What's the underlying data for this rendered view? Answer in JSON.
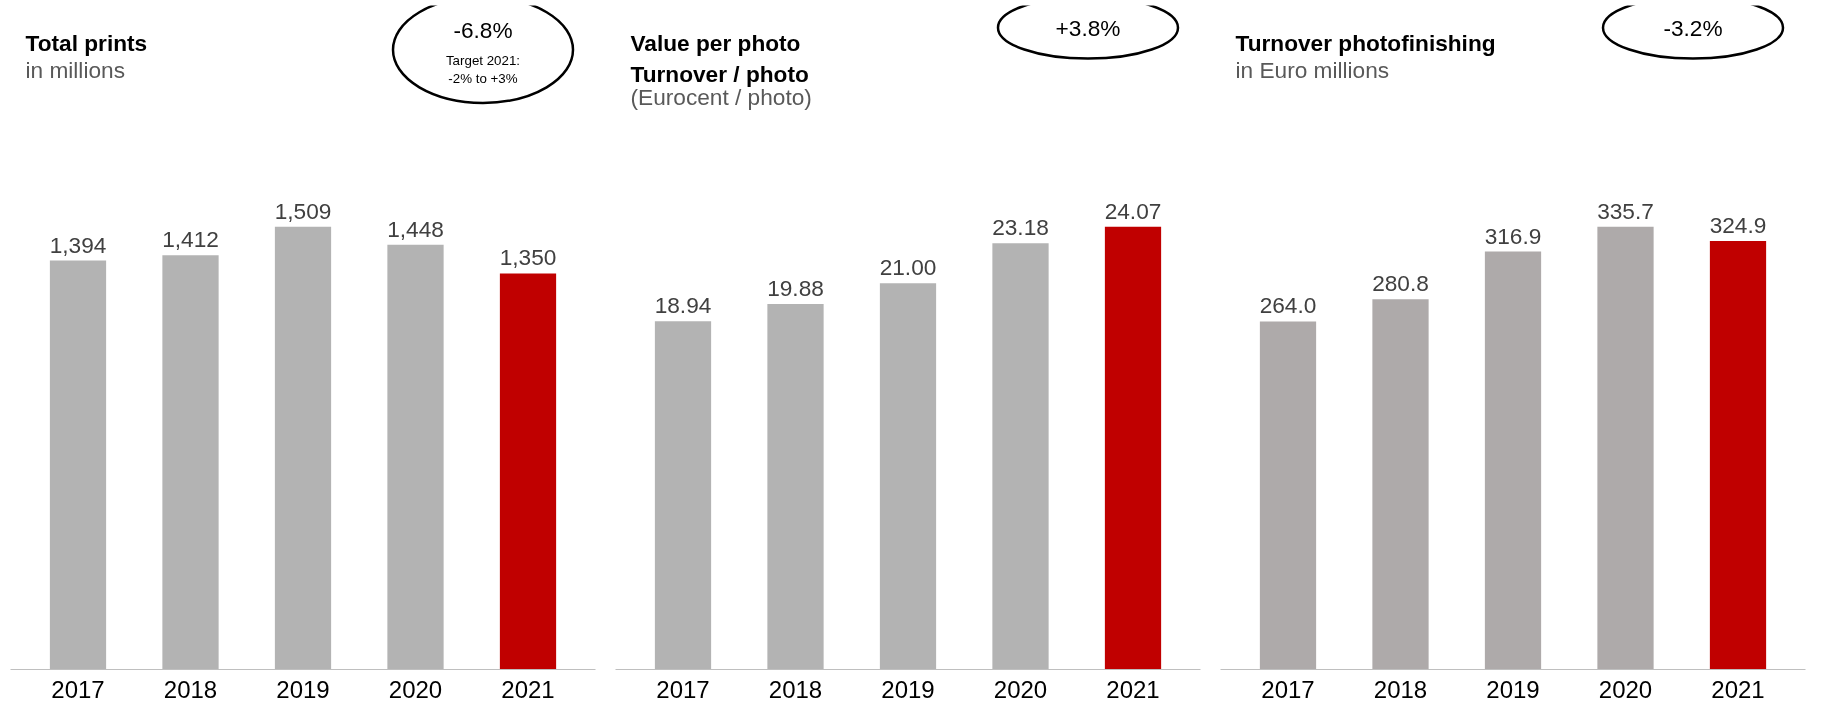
{
  "chart_data": [
    {
      "type": "bar",
      "title": "Total prints",
      "subtitle": "in millions",
      "categories": [
        "2017",
        "2018",
        "2019",
        "2020",
        "2021"
      ],
      "values": [
        1394,
        1412,
        1509,
        1448,
        1350
      ],
      "colors": [
        "#b3b3b3",
        "#b3b3b3",
        "#b3b3b3",
        "#b3b3b3",
        "#c00000"
      ],
      "value_labels": [
        "1,394",
        "1,412",
        "1,509",
        "1,448",
        "1,350"
      ],
      "annotations": [
        "-6.8%",
        "Target 2021:\n-2% to +3%"
      ],
      "grid": false
    },
    {
      "type": "bar",
      "title": "Value per photo\nTurnover / photo",
      "subtitle": "(Eurocent / photo)",
      "categories": [
        "2017",
        "2018",
        "2019",
        "2020",
        "2021"
      ],
      "values": [
        18.94,
        19.88,
        21.0,
        23.18,
        24.07
      ],
      "colors": [
        "#b3b3b3",
        "#b3b3b3",
        "#b3b3b3",
        "#b3b3b3",
        "#c00000"
      ],
      "value_labels": [
        "18.94",
        "19.88",
        "21.00",
        "23.18",
        "24.07"
      ],
      "annotations": [
        "+3.8%"
      ],
      "grid": false
    },
    {
      "type": "bar",
      "title": "Turnover photofinishing",
      "subtitle": "in Euro millions",
      "categories": [
        "2017",
        "2018",
        "2019",
        "2020",
        "2021"
      ],
      "values": [
        264.0,
        280.8,
        316.9,
        335.7,
        324.9
      ],
      "colors": [
        "#aeaaaa",
        "#aeaaaa",
        "#aeaaaa",
        "#aeaaaa",
        "#c00000"
      ],
      "value_labels": [
        "264.0",
        "280.8",
        "316.9",
        "335.7",
        "324.9"
      ],
      "annotations": [
        "-3.2%"
      ],
      "grid": false
    }
  ]
}
